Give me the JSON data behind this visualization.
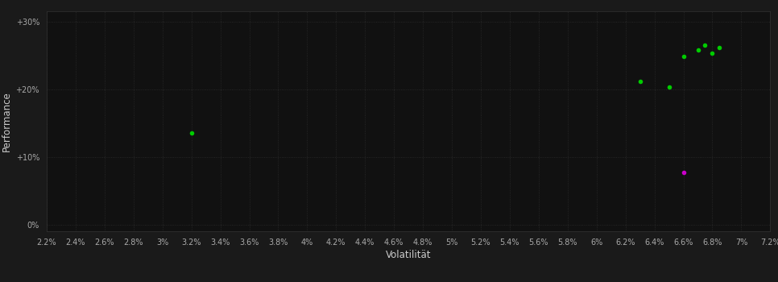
{
  "background_color": "#1a1a1a",
  "plot_bg_color": "#111111",
  "grid_color": "#2d2d2d",
  "grid_style": ":",
  "xlabel": "Volatilität",
  "ylabel": "Performance",
  "xlabel_color": "#cccccc",
  "ylabel_color": "#cccccc",
  "tick_color": "#aaaaaa",
  "tick_fontsize": 7,
  "label_fontsize": 8.5,
  "xlim": [
    0.022,
    0.072
  ],
  "ylim": [
    -0.01,
    0.315
  ],
  "xticks": [
    0.022,
    0.024,
    0.026,
    0.028,
    0.03,
    0.032,
    0.034,
    0.036,
    0.038,
    0.04,
    0.042,
    0.044,
    0.046,
    0.048,
    0.05,
    0.052,
    0.054,
    0.056,
    0.058,
    0.06,
    0.062,
    0.064,
    0.066,
    0.068,
    0.07,
    0.072
  ],
  "yticks": [
    0.0,
    0.1,
    0.2,
    0.3
  ],
  "ytick_labels": [
    "0%",
    "+10%",
    "+20%",
    "+30%"
  ],
  "xtick_labels": [
    "2.2%",
    "2.4%",
    "2.6%",
    "2.8%",
    "3%",
    "3.2%",
    "3.4%",
    "3.6%",
    "3.8%",
    "4%",
    "4.2%",
    "4.4%",
    "4.6%",
    "4.8%",
    "5%",
    "5.2%",
    "5.4%",
    "5.6%",
    "5.8%",
    "6%",
    "6.2%",
    "6.4%",
    "6.6%",
    "6.8%",
    "7%",
    "7.2%"
  ],
  "green_points": [
    [
      0.032,
      0.135
    ],
    [
      0.063,
      0.212
    ],
    [
      0.065,
      0.203
    ],
    [
      0.066,
      0.248
    ],
    [
      0.067,
      0.258
    ],
    [
      0.0675,
      0.265
    ],
    [
      0.068,
      0.253
    ],
    [
      0.0685,
      0.262
    ]
  ],
  "magenta_points": [
    [
      0.066,
      0.077
    ]
  ],
  "green_color": "#00cc00",
  "magenta_color": "#cc00cc",
  "marker_size": 4
}
